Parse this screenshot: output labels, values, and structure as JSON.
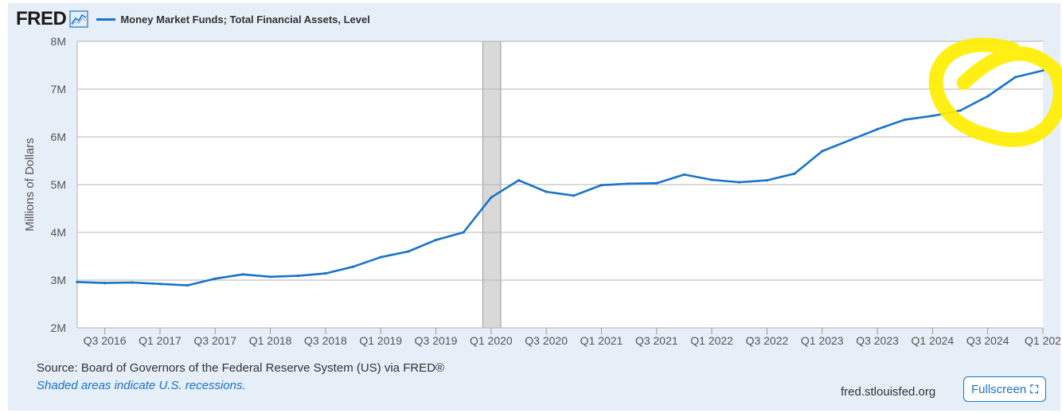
{
  "header": {
    "logo": "FRED",
    "logo_icon": "line-chart-icon"
  },
  "footer": {
    "source": "Source: Board of Governors of the Federal Reserve System (US) via FRED®",
    "recession_note": "Shaded areas indicate U.S. recessions.",
    "site": "fred.stlouisfed.org",
    "fullscreen_label": "Fullscreen",
    "fullscreen_icon": "expand-icon"
  },
  "colors": {
    "series": "#1a73c7",
    "recession": "#d9d9d9",
    "highlight": "#ffee00",
    "grid": "#b3b3b3"
  },
  "chart_data": {
    "type": "line",
    "title": "Money Market Funds; Total Financial Assets, Level",
    "xlabel": "",
    "ylabel": "Millions of Dollars",
    "y_ticks": [
      "2M",
      "3M",
      "4M",
      "5M",
      "6M",
      "7M",
      "8M"
    ],
    "y_tick_values": [
      2,
      3,
      4,
      5,
      6,
      7,
      8
    ],
    "ylim": [
      2,
      8
    ],
    "y_unit": "millions of millions of dollars (M)",
    "x_tick_labels": [
      "Q3 2016",
      "Q1 2017",
      "Q3 2017",
      "Q1 2018",
      "Q3 2018",
      "Q1 2019",
      "Q3 2019",
      "Q1 2020",
      "Q3 2020",
      "Q1 2021",
      "Q3 2021",
      "Q1 2022",
      "Q3 2022",
      "Q1 2023",
      "Q3 2023",
      "Q1 2024",
      "Q3 2024",
      "Q1 202"
    ],
    "x_tick_index": [
      1,
      3,
      5,
      7,
      9,
      11,
      13,
      15,
      17,
      19,
      21,
      23,
      25,
      27,
      29,
      31,
      33,
      35
    ],
    "xlim": [
      0,
      35
    ],
    "recession": {
      "start_index": 14.7,
      "end_index": 15.35,
      "label": "2020 recession"
    },
    "series": [
      {
        "name": "Money Market Funds; Total Financial Assets, Level",
        "quarters": [
          "Q2 2016",
          "Q3 2016",
          "Q4 2016",
          "Q1 2017",
          "Q2 2017",
          "Q3 2017",
          "Q4 2017",
          "Q1 2018",
          "Q2 2018",
          "Q3 2018",
          "Q4 2018",
          "Q1 2019",
          "Q2 2019",
          "Q3 2019",
          "Q4 2019",
          "Q1 2020",
          "Q2 2020",
          "Q3 2020",
          "Q4 2020",
          "Q1 2021",
          "Q2 2021",
          "Q3 2021",
          "Q4 2021",
          "Q1 2022",
          "Q2 2022",
          "Q3 2022",
          "Q4 2022",
          "Q1 2023",
          "Q2 2023",
          "Q3 2023",
          "Q4 2023",
          "Q1 2024",
          "Q2 2024",
          "Q3 2024",
          "Q4 2024",
          "Q1 2025"
        ],
        "values": [
          2.96,
          2.94,
          2.95,
          2.92,
          2.89,
          3.03,
          3.12,
          3.07,
          3.09,
          3.14,
          3.28,
          3.48,
          3.6,
          3.84,
          4.0,
          4.73,
          5.09,
          4.85,
          4.77,
          4.99,
          5.02,
          5.03,
          5.21,
          5.1,
          5.05,
          5.09,
          5.23,
          5.7,
          5.93,
          6.16,
          6.36,
          6.44,
          6.55,
          6.85,
          7.25,
          7.39
        ]
      }
    ],
    "annotations": [
      {
        "type": "hand-drawn-circle",
        "color": "#ffee00",
        "around": "Q1 2024 to Q1 2025 values"
      }
    ]
  }
}
